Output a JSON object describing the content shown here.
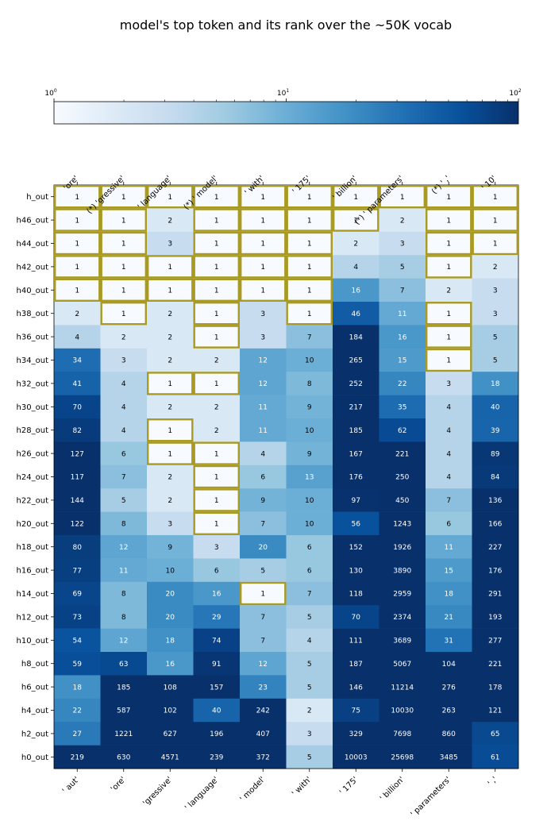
{
  "chart_data": {
    "type": "heatmap",
    "title": "model's top token and its rank over the ~50K vocab",
    "colorbar": {
      "scale": "log",
      "range": [
        1,
        100
      ],
      "tick_labels": [
        {
          "base": "10",
          "exp": "0",
          "value": 1
        },
        {
          "base": "10",
          "exp": "1",
          "value": 10
        },
        {
          "base": "10",
          "exp": "2",
          "value": 100
        }
      ],
      "colormap": "Blues"
    },
    "top_labels": [
      "'ore'",
      "(*) 'gressive'",
      "' language'",
      "(*) ' model'",
      "' with'",
      "' 175'",
      "' billion'",
      "(*) ' parameters'",
      "(*) ' ,'",
      "' 10'"
    ],
    "bottom_labels": [
      "' aut'",
      "'ore'",
      "'gressive'",
      "' language'",
      "' model'",
      "' with'",
      "' 175'",
      "' billion'",
      "' parameters'",
      "' ,'"
    ],
    "row_labels": [
      "h_out",
      "h46_out",
      "h44_out",
      "h42_out",
      "h40_out",
      "h38_out",
      "h36_out",
      "h34_out",
      "h32_out",
      "h30_out",
      "h28_out",
      "h26_out",
      "h24_out",
      "h22_out",
      "h20_out",
      "h18_out",
      "h16_out",
      "h14_out",
      "h12_out",
      "h10_out",
      "h8_out",
      "h6_out",
      "h4_out",
      "h2_out",
      "h0_out"
    ],
    "values": [
      [
        1,
        1,
        1,
        1,
        1,
        1,
        1,
        1,
        1,
        1
      ],
      [
        1,
        1,
        2,
        1,
        1,
        1,
        1,
        2,
        1,
        1
      ],
      [
        1,
        1,
        3,
        1,
        1,
        1,
        2,
        3,
        1,
        1
      ],
      [
        1,
        1,
        1,
        1,
        1,
        1,
        4,
        5,
        1,
        2
      ],
      [
        1,
        1,
        1,
        1,
        1,
        1,
        16,
        7,
        2,
        3
      ],
      [
        2,
        1,
        2,
        1,
        3,
        1,
        46,
        11,
        1,
        3
      ],
      [
        4,
        2,
        2,
        1,
        3,
        7,
        184,
        16,
        1,
        5
      ],
      [
        34,
        3,
        2,
        2,
        12,
        10,
        265,
        15,
        1,
        5
      ],
      [
        41,
        4,
        1,
        1,
        12,
        8,
        252,
        22,
        3,
        18
      ],
      [
        70,
        4,
        2,
        2,
        11,
        9,
        217,
        35,
        4,
        40
      ],
      [
        82,
        4,
        1,
        2,
        11,
        10,
        185,
        62,
        4,
        39
      ],
      [
        127,
        6,
        1,
        1,
        4,
        9,
        167,
        221,
        4,
        89
      ],
      [
        117,
        7,
        2,
        1,
        6,
        13,
        176,
        250,
        4,
        84
      ],
      [
        144,
        5,
        2,
        1,
        9,
        10,
        97,
        450,
        7,
        136
      ],
      [
        122,
        8,
        3,
        1,
        7,
        10,
        56,
        1243,
        6,
        166
      ],
      [
        80,
        12,
        9,
        3,
        20,
        6,
        152,
        1926,
        11,
        227
      ],
      [
        77,
        11,
        10,
        6,
        5,
        6,
        130,
        3890,
        15,
        176
      ],
      [
        69,
        8,
        20,
        16,
        1,
        7,
        118,
        2959,
        18,
        291
      ],
      [
        73,
        8,
        20,
        29,
        7,
        5,
        70,
        2374,
        21,
        193
      ],
      [
        54,
        12,
        18,
        74,
        7,
        4,
        111,
        3689,
        31,
        277
      ],
      [
        59,
        63,
        16,
        91,
        12,
        5,
        187,
        5067,
        104,
        221
      ],
      [
        18,
        185,
        108,
        157,
        23,
        5,
        146,
        11214,
        276,
        178
      ],
      [
        22,
        587,
        102,
        40,
        242,
        2,
        75,
        10030,
        263,
        121
      ],
      [
        27,
        1221,
        627,
        196,
        407,
        3,
        329,
        7698,
        860,
        65
      ],
      [
        219,
        630,
        4571,
        239,
        372,
        5,
        10003,
        25698,
        3485,
        61
      ]
    ],
    "highlight_rule": "cells where predicted token rank is 1 (the layer's top token matches) are outlined in gold",
    "highlight_color": "#a89a22"
  }
}
